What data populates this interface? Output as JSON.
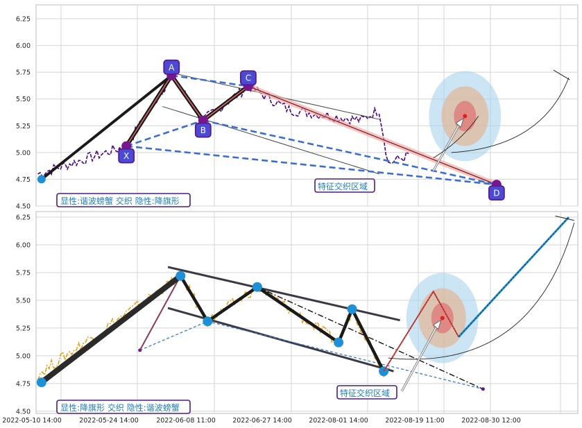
{
  "chart_data": [
    {
      "type": "line",
      "panel": "top",
      "ylim": [
        4.5,
        6.38
      ],
      "y_ticks": [
        "4.50",
        "4.75",
        "5.00",
        "5.25",
        "5.50",
        "5.75",
        "6.00",
        "6.25"
      ],
      "grid": true,
      "pattern_points": [
        {
          "label": "X",
          "x": 10.0,
          "y": 5.06
        },
        {
          "label": "A",
          "x": 15.0,
          "y": 5.72
        },
        {
          "label": "B",
          "x": 18.5,
          "y": 5.3
        },
        {
          "label": "C",
          "x": 23.5,
          "y": 5.62
        },
        {
          "label": "D",
          "x": 51.0,
          "y": 4.7
        }
      ],
      "start_marker": {
        "x": 0.6,
        "y": 4.75
      },
      "price_series_color": "#4b0082",
      "info_box": "显性:谐波螃蟹 交织 隐性:降旗形",
      "zone_label": "特征交织区域",
      "target_marker": {
        "x": 47.5,
        "y": 5.34
      },
      "colors": {
        "pattern_dashed": "#3a6fd0",
        "pattern_solid": "#1a1a1a",
        "highlight": "#e36b6b",
        "point_fill": "#4a4ad6",
        "point_border": "#5a1a8a"
      }
    },
    {
      "type": "line",
      "panel": "bottom",
      "ylim": [
        4.48,
        6.3
      ],
      "y_ticks": [
        "4.50",
        "4.75",
        "5.00",
        "5.25",
        "5.50",
        "5.75",
        "6.00",
        "6.25"
      ],
      "x_ticks": [
        "2022-05-10 14:00",
        "2022-05-24 14:00",
        "2022-06-08 11:00",
        "2022-06-27 14:00",
        "2022-08-01 14:00",
        "2022-08-19 11:00",
        "2022-08-30 12:00"
      ],
      "grid": true,
      "pattern_points": [
        {
          "x": 0.6,
          "y": 4.76
        },
        {
          "x": 16.0,
          "y": 5.72
        },
        {
          "x": 19.0,
          "y": 5.31
        },
        {
          "x": 24.5,
          "y": 5.62
        },
        {
          "x": 33.5,
          "y": 5.12
        },
        {
          "x": 35.0,
          "y": 5.42
        },
        {
          "x": 38.5,
          "y": 4.86
        }
      ],
      "price_series_color": "#e8a010",
      "info_box": "显性:降旗形 交织 隐性:谐波螃蟹",
      "zone_label": "特征交织区域",
      "target_marker": {
        "x": 45.0,
        "y": 5.34
      },
      "colors": {
        "pattern_solid": "#1a1a1a",
        "channel": "#3a3a46",
        "point_fill": "#1e90d6",
        "target_line": "#1e90d6"
      }
    }
  ]
}
